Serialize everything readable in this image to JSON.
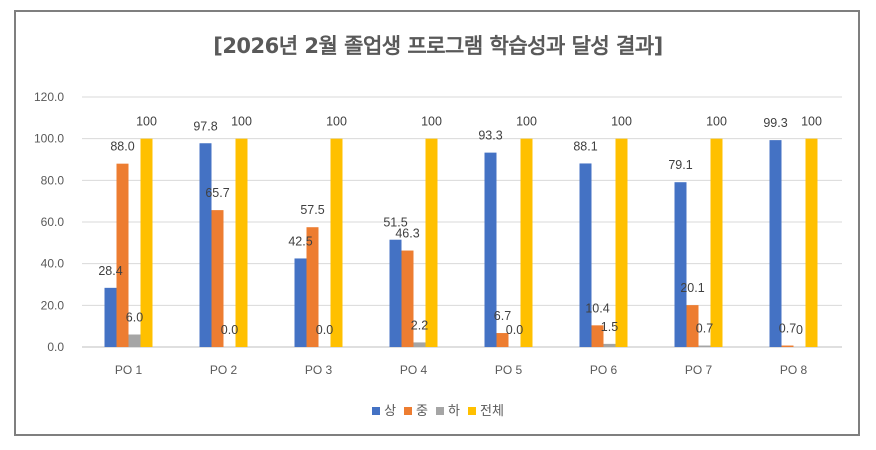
{
  "chart_data": {
    "type": "bar",
    "title": "[2026년 2월 졸업생 프로그램 학습성과 달성 결과]",
    "categories": [
      "PO 1",
      "PO 2",
      "PO 3",
      "PO 4",
      "PO 5",
      "PO 6",
      "PO 7",
      "PO 8"
    ],
    "series": [
      {
        "name": "상",
        "color": "#4472C4",
        "values": [
          28.4,
          97.8,
          42.5,
          51.5,
          93.3,
          88.1,
          79.1,
          99.3
        ],
        "labels": [
          "28.4",
          "97.8",
          "42.5",
          "51.5",
          "93.3",
          "88.1",
          "79.1",
          "99.3"
        ]
      },
      {
        "name": "중",
        "color": "#ED7D31",
        "values": [
          88.0,
          65.7,
          57.5,
          46.3,
          6.7,
          10.4,
          20.1,
          0.7
        ],
        "labels": [
          "88.0",
          "65.7",
          "57.5",
          "46.3",
          "6.7",
          "10.4",
          "20.1",
          "0.7"
        ]
      },
      {
        "name": "하",
        "color": "#A5A5A5",
        "values": [
          6.0,
          0.0,
          0.0,
          2.2,
          0.0,
          1.5,
          0.7,
          0
        ],
        "labels": [
          "6.0",
          "0.0",
          "0.0",
          "2.2",
          "0.0",
          "1.5",
          "0.7",
          "0"
        ]
      },
      {
        "name": "전체",
        "color": "#FFC000",
        "values": [
          100,
          100,
          100,
          100,
          100,
          100,
          100,
          100
        ],
        "labels": [
          "100",
          "100",
          "100",
          "100",
          "100",
          "100",
          "100",
          "100"
        ]
      }
    ],
    "y_ticks": [
      "0.0",
      "20.0",
      "40.0",
      "60.0",
      "80.0",
      "100.0",
      "120.0"
    ],
    "ylim": [
      0,
      120
    ],
    "xlabel": "",
    "ylabel": "",
    "grid": true,
    "legend_position": "bottom"
  }
}
